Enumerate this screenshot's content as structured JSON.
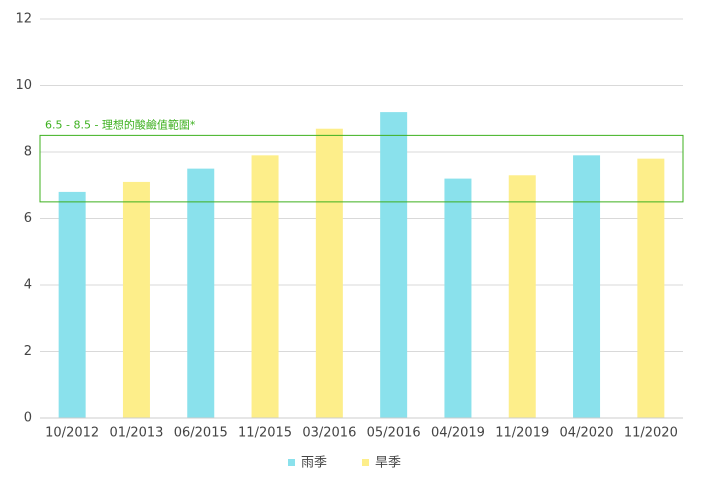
{
  "chart_data": {
    "type": "bar",
    "categories": [
      "10/2012",
      "01/2013",
      "06/2015",
      "11/2015",
      "03/2016",
      "05/2016",
      "04/2019",
      "11/2019",
      "04/2020",
      "11/2020"
    ],
    "series": [
      {
        "name": "雨季",
        "color": "#8ae1ec",
        "values": [
          6.8,
          null,
          7.5,
          null,
          null,
          9.2,
          7.2,
          null,
          7.9,
          null
        ]
      },
      {
        "name": "旱季",
        "color": "#fdee8a",
        "values": [
          null,
          7.1,
          null,
          7.9,
          8.7,
          null,
          null,
          7.3,
          null,
          7.8
        ]
      }
    ],
    "ylim": [
      0,
      12
    ],
    "yticks": [
      0,
      2,
      4,
      6,
      8,
      10,
      12
    ],
    "grid": true,
    "annotation": {
      "label": "6.5 - 8.5 - 理想的酸鹼值範圍*",
      "band": [
        6.5,
        8.5
      ],
      "color": "#3cb01e"
    },
    "legend": "bottom"
  }
}
